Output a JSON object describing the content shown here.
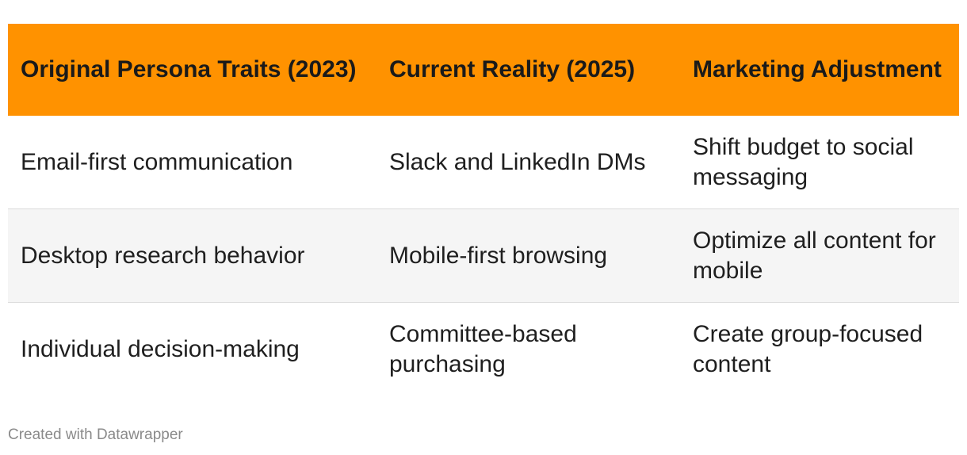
{
  "chart_data": {
    "type": "table",
    "columns": [
      "Original Persona Traits (2023)",
      "Current Reality (2025)",
      "Marketing Adjustment"
    ],
    "rows": [
      [
        "Email-first communication",
        "Slack and LinkedIn DMs",
        "Shift budget to social messaging"
      ],
      [
        "Desktop research behavior",
        "Mobile-first browsing",
        "Optimize all content for mobile"
      ],
      [
        "Individual decision-making",
        "Committee-based purchasing",
        "Create group-focused content"
      ]
    ],
    "header_color": "#FF9200",
    "stripe_color": "#f5f5f5"
  },
  "footer": {
    "credit": "Created with Datawrapper"
  }
}
